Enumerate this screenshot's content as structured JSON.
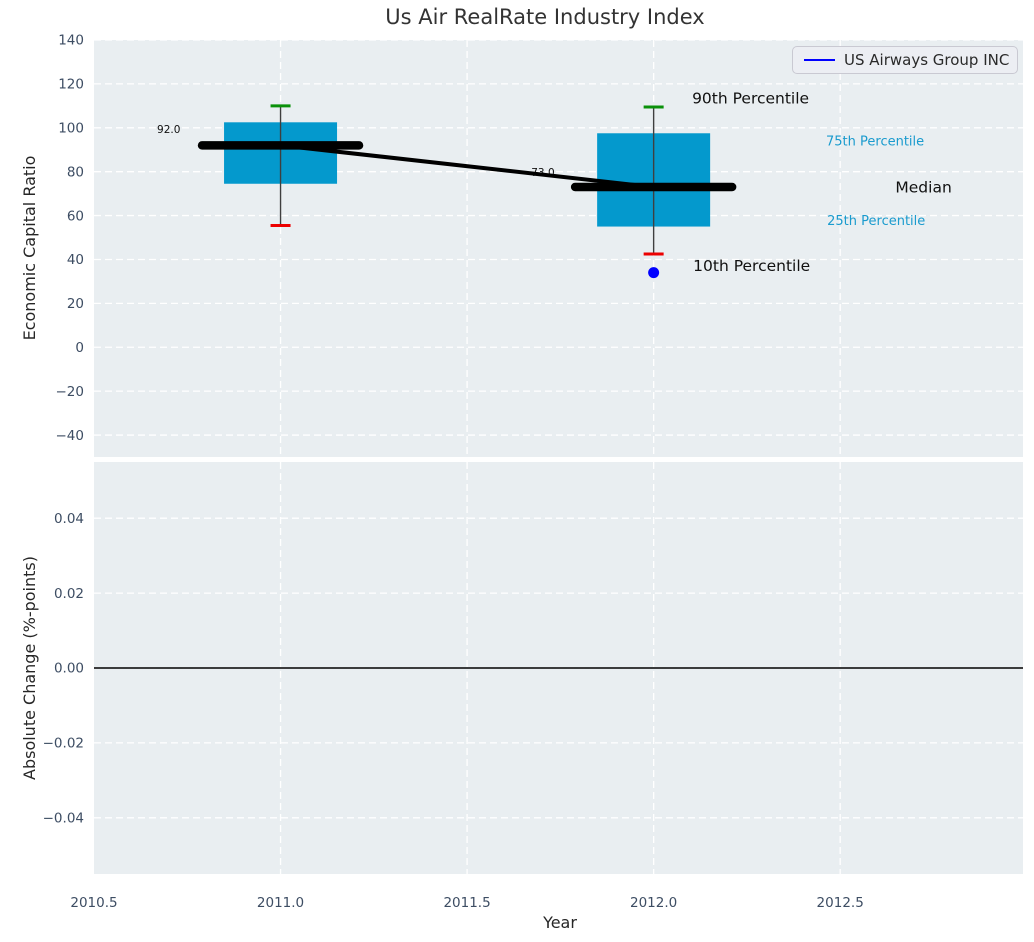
{
  "figure": {
    "title": "Us Air RealRate Industry Index",
    "background": "#ffffff",
    "plot_background": "#e9eef1",
    "grid_color": "#ffffff",
    "tick_label_color": "#3d4d63"
  },
  "legend": {
    "label": "US Airways Group INC",
    "line_color": "#0000ff"
  },
  "chart_data": [
    {
      "type": "boxplot",
      "title": "Us Air RealRate Industry Index",
      "ylabel": "Economic Capital Ratio",
      "xlabel": "",
      "xlim": [
        2010.5,
        2012.99
      ],
      "ylim": [
        -50,
        140
      ],
      "yticks": [
        140,
        120,
        100,
        80,
        60,
        40,
        20,
        0,
        -20,
        -40
      ],
      "yticklabels": [
        "140",
        "120",
        "100",
        "80",
        "60",
        "40",
        "20",
        "0",
        "−20",
        "−40"
      ],
      "grid_xticks": [
        2011.0,
        2011.5,
        2012.0,
        2012.5
      ],
      "grid": true,
      "legend": {
        "label": "US Airways Group INC",
        "color": "#0000ff",
        "position": "upper right"
      },
      "boxes": [
        {
          "year": 2011,
          "p10": 55.5,
          "p25": 74.5,
          "median": 92.0,
          "p75": 102.5,
          "p90": 110.0
        },
        {
          "year": 2012,
          "p10": 42.5,
          "p25": 55.0,
          "median": 73.0,
          "p75": 97.5,
          "p90": 109.5
        }
      ],
      "median_line": {
        "x": [
          2011,
          2012
        ],
        "y": [
          92.0,
          73.0
        ],
        "color": "#000000"
      },
      "company_point": {
        "x": 2012,
        "y": 34.0,
        "color": "#0000ff",
        "label": "US Airways Group INC"
      },
      "value_labels": [
        {
          "text": "92.0",
          "x": 2010.669,
          "y": 99.4
        },
        {
          "text": "73.0",
          "x": 2011.672,
          "y": 79.8
        }
      ],
      "annotations": [
        {
          "text": "90th Percentile",
          "x": 2012.103,
          "y": 113.6,
          "color": "#111111",
          "size": 15.5
        },
        {
          "text": "75th Percentile",
          "x": 2012.462,
          "y": 94.0,
          "color": "#1a9bce",
          "size": 13
        },
        {
          "text": "Median",
          "x": 2012.648,
          "y": 73.0,
          "color": "#111111",
          "size": 15.5
        },
        {
          "text": "25th Percentile",
          "x": 2012.465,
          "y": 57.7,
          "color": "#1a9bce",
          "size": 13
        },
        {
          "text": "10th Percentile",
          "x": 2012.106,
          "y": 37.2,
          "color": "#111111",
          "size": 15.5
        }
      ],
      "colors": {
        "box": "#0499cd",
        "p90_cap": "#0a910a",
        "p10_cap": "#ec0000",
        "whisker": "#3f3f3f",
        "median_marker": "#000000"
      }
    },
    {
      "type": "line",
      "ylabel": "Absolute Change (%-points)",
      "xlabel": "Year",
      "xlim": [
        2010.5,
        2012.99
      ],
      "ylim": [
        -0.055,
        0.055
      ],
      "yticks": [
        0.04,
        0.02,
        0.0,
        -0.02,
        -0.04
      ],
      "yticklabels": [
        "0.04",
        "0.02",
        "0.00",
        "−0.02",
        "−0.04"
      ],
      "xticks": [
        2010.5,
        2011.0,
        2011.5,
        2012.0,
        2012.5
      ],
      "xticklabels": [
        "2010.5",
        "2011.0",
        "2011.5",
        "2012.0",
        "2012.5"
      ],
      "grid_xticks": [
        2011.0,
        2011.5,
        2012.0,
        2012.5
      ],
      "grid": true,
      "zero_line": {
        "y": 0.0,
        "color": "#000000"
      },
      "series": []
    }
  ]
}
